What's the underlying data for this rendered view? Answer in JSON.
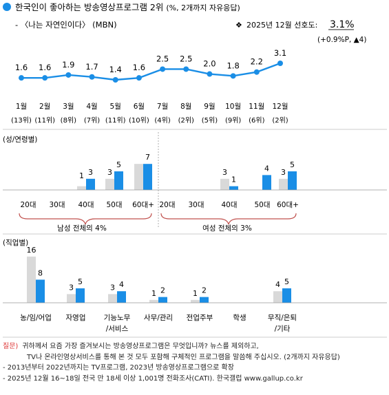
{
  "header": {
    "title": "한국인이 좋아하는 방송영상프로그램 2위",
    "title_unit": "(%, 2개까지 자유응답)",
    "subtitle": "- 〈나는 자연인이다〉 (MBN)",
    "pref_label": "2025년 12월 선호도:",
    "pref_value": "3.1%",
    "change": "(+0.9%P, ▲4)",
    "diamond": "❖"
  },
  "colors": {
    "accent": "#1a8ee6",
    "gray": "#d9d9d9",
    "line": "#1a8ee6",
    "red": "#d33",
    "curve": "#c0504d"
  },
  "chart_data": [
    {
      "type": "line",
      "title": "",
      "categories": [
        "1월",
        "2월",
        "3월",
        "4월",
        "5월",
        "6월",
        "7월",
        "8월",
        "9월",
        "10월",
        "11월",
        "12월"
      ],
      "ranks": [
        "(13위)",
        "(11위)",
        "(8위)",
        "(7위)",
        "(11위)",
        "(10위)",
        "(4위)",
        "(2위)",
        "(5위)",
        "(9위)",
        "(6위)",
        "(2위)"
      ],
      "values": [
        1.6,
        1.6,
        1.9,
        1.7,
        1.4,
        1.6,
        2.5,
        2.5,
        2.0,
        1.8,
        2.2,
        3.1
      ],
      "value_labels": [
        "1.6",
        "1.6",
        "1.9",
        "1.7",
        "1.4",
        "1.6",
        "2.5",
        "2.5",
        "2.0",
        "1.8",
        "2.2",
        "3.1"
      ]
    },
    {
      "type": "bar",
      "title": "(성/연령별)",
      "categories": [
        "20대",
        "30대",
        "40대",
        "50대",
        "60대+",
        "20대",
        "30대",
        "40대",
        "50대",
        "60대+"
      ],
      "group_labels": [
        "남성 전체의 4%",
        "여성 전체의 3%"
      ],
      "series": [
        {
          "values": [
            0,
            0,
            1,
            3,
            7,
            0,
            0,
            3,
            0,
            3
          ],
          "labels": [
            "",
            "",
            "",
            "3",
            "",
            "",
            "",
            "3",
            "",
            "3"
          ]
        },
        {
          "values": [
            0,
            0,
            3,
            5,
            7,
            0,
            0,
            1,
            4,
            5
          ],
          "labels": [
            "",
            "",
            "3",
            "5",
            "7",
            "",
            "",
            "1",
            "4",
            "5"
          ]
        }
      ],
      "extra_labels": [
        "",
        "",
        "1",
        "",
        "",
        "",
        "",
        "",
        "",
        ""
      ]
    },
    {
      "type": "bar",
      "title": "(직업별)",
      "categories": [
        "농/임/어업",
        "자영업",
        "기능노무\n/서비스",
        "사무/관리",
        "전업주부",
        "학생",
        "무직/은퇴\n/기타"
      ],
      "series": [
        {
          "values": [
            16,
            3,
            3,
            1,
            1,
            0,
            4
          ],
          "labels": [
            "16",
            "3",
            "3",
            "1",
            "1",
            "",
            "4"
          ]
        },
        {
          "values": [
            8,
            5,
            4,
            2,
            2,
            0,
            5
          ],
          "labels": [
            "8",
            "5",
            "4",
            "2",
            "2",
            "",
            "5"
          ]
        }
      ]
    }
  ],
  "notes": {
    "q_label": "질문)",
    "q_line1": "귀하께서 요즘 가장 즐겨보시는 방송영상프로그램은 무엇입니까? 뉴스를 제외하고,",
    "q_line2": "TV나 온라인영상서비스를 통해 본 것 모두 포함해 구체적인 프로그램을 말씀해 주십시오. (2개까지 자유응답)",
    "line3": "- 2013년부터 2022년까지는 TV프로그램, 2023년 방송영상프로그램으로 확장",
    "line4": "- 2025년 12월 16~18일 전국 만 18세 이상 1,001명 전화조사(CATI). 한국갤럽 www.gallup.co.kr"
  }
}
